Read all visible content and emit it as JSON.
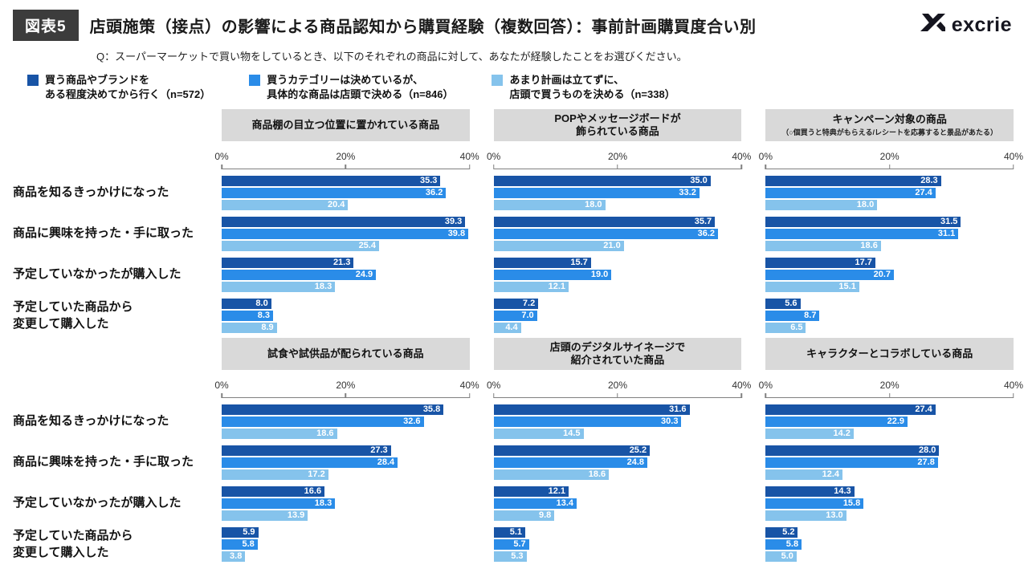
{
  "header": {
    "badge": "図表5",
    "title": "店頭施策（接点）の影響による商品認知から購買経験（複数回答）：事前計画購買度合い別",
    "question": "Q：スーパーマーケットで買い物をしているとき、以下のそれぞれの商品に対して、あなたが経験したことをお選びください。",
    "logo": "excrie"
  },
  "legend": [
    {
      "line1": "買う商品やブランドを",
      "line2": "ある程度決めてから行く（n=572）"
    },
    {
      "line1": "買うカテゴリーは決めているが、",
      "line2": "具体的な商品は店頭で決める（n=846）"
    },
    {
      "line1": "あまり計画は立てずに、",
      "line2": "店頭で買うものを決める（n=338）"
    }
  ],
  "chart_data": {
    "type": "bar",
    "orientation": "horizontal",
    "xlim": [
      0,
      40
    ],
    "ticks": [
      "0%",
      "20%",
      "40%"
    ],
    "categories": [
      "商品を知るきっかけになった",
      "商品に興味を持った・手に取った",
      "予定していなかったが購入した",
      "予定していた商品から\n変更して購入した"
    ],
    "series": [
      {
        "name": "買う商品やブランドをある程度決めてから行く",
        "n": 572,
        "color": "#1854a6"
      },
      {
        "name": "買うカテゴリーは決めているが、具体的な商品は店頭で決める",
        "n": 846,
        "color": "#2a8ce8"
      },
      {
        "name": "あまり計画は立てずに、店頭で買うものを決める",
        "n": 338,
        "color": "#85c3ec"
      }
    ],
    "panels": [
      {
        "title": "商品棚の目立つ位置に置かれている商品",
        "subtitle": "",
        "rows": [
          [
            35.3,
            36.2,
            20.4
          ],
          [
            39.3,
            39.8,
            25.4
          ],
          [
            21.3,
            24.9,
            18.3
          ],
          [
            8.0,
            8.3,
            8.9
          ]
        ]
      },
      {
        "title": "POPやメッセージボードが\n飾られている商品",
        "subtitle": "",
        "rows": [
          [
            35.0,
            33.2,
            18.0
          ],
          [
            35.7,
            36.2,
            21.0
          ],
          [
            15.7,
            19.0,
            12.1
          ],
          [
            7.2,
            7.0,
            4.4
          ]
        ]
      },
      {
        "title": "キャンペーン対象の商品",
        "subtitle": "（○個買うと特典がもらえる/レシートを応募すると景品があたる）",
        "rows": [
          [
            28.3,
            27.4,
            18.0
          ],
          [
            31.5,
            31.1,
            18.6
          ],
          [
            17.7,
            20.7,
            15.1
          ],
          [
            5.6,
            8.7,
            6.5
          ]
        ]
      },
      {
        "title": "試食や試供品が配られている商品",
        "subtitle": "",
        "rows": [
          [
            35.8,
            32.6,
            18.6
          ],
          [
            27.3,
            28.4,
            17.2
          ],
          [
            16.6,
            18.3,
            13.9
          ],
          [
            5.9,
            5.8,
            3.8
          ]
        ]
      },
      {
        "title": "店頭のデジタルサイネージで\n紹介されていた商品",
        "subtitle": "",
        "rows": [
          [
            31.6,
            30.3,
            14.5
          ],
          [
            25.2,
            24.8,
            18.6
          ],
          [
            12.1,
            13.4,
            9.8
          ],
          [
            5.1,
            5.7,
            5.3
          ]
        ]
      },
      {
        "title": "キャラクターとコラボしている商品",
        "subtitle": "",
        "rows": [
          [
            27.4,
            22.9,
            14.2
          ],
          [
            28.0,
            27.8,
            12.4
          ],
          [
            14.3,
            15.8,
            13.0
          ],
          [
            5.2,
            5.8,
            5.0
          ]
        ]
      }
    ]
  }
}
